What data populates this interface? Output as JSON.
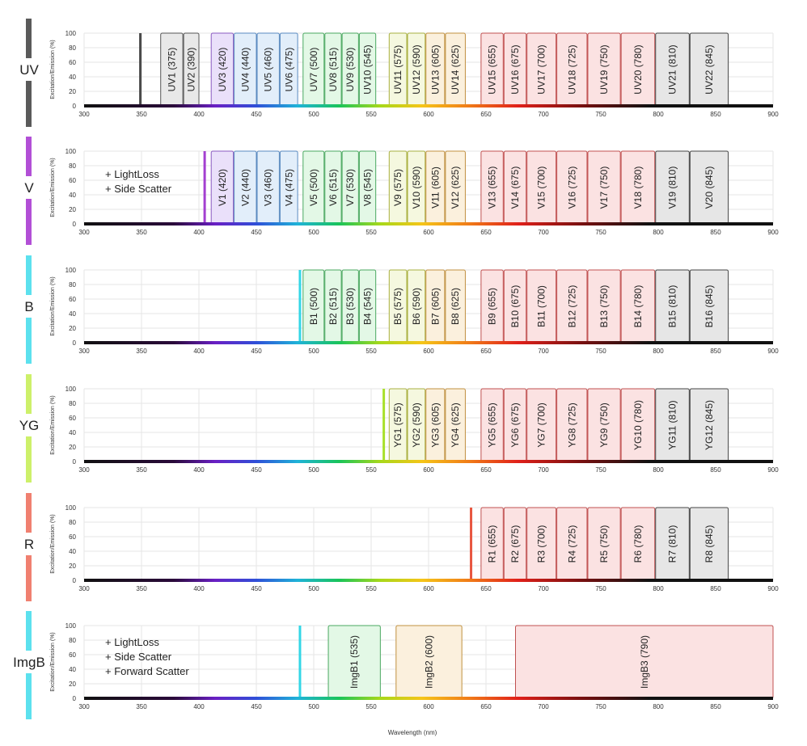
{
  "chart_data": {
    "type": "spectral-filter-layout",
    "xlabel": "Wavelength (nm)",
    "ylabel": "Excitation/Emission (%)",
    "xlim": [
      300,
      900
    ],
    "ylim": [
      0,
      100
    ],
    "x_ticks": [
      300,
      350,
      400,
      450,
      500,
      550,
      600,
      650,
      700,
      750,
      800,
      850,
      900
    ],
    "y_ticks": [
      0,
      20,
      40,
      60,
      80,
      100
    ],
    "grid": true,
    "panels": [
      {
        "laser": "UV",
        "laser_color": "#5a5a5a",
        "laser_nm": 349,
        "laser_line_color": "#4a4a4a",
        "notes": [],
        "channels": [
          {
            "name": "UV1 (375)",
            "lo": 366,
            "hi": 386
          },
          {
            "name": "UV2 (390)",
            "lo": 386,
            "hi": 400
          },
          {
            "name": "UV3 (420)",
            "lo": 410,
            "hi": 430
          },
          {
            "name": "UV4 (440)",
            "lo": 430,
            "hi": 450
          },
          {
            "name": "UV5 (460)",
            "lo": 450,
            "hi": 470
          },
          {
            "name": "UV6 (475)",
            "lo": 470,
            "hi": 486
          },
          {
            "name": "UV7 (500)",
            "lo": 490,
            "hi": 509
          },
          {
            "name": "UV8 (515)",
            "lo": 509,
            "hi": 524
          },
          {
            "name": "UV9 (530)",
            "lo": 524,
            "hi": 539
          },
          {
            "name": "UV10 (545)",
            "lo": 539,
            "hi": 554
          },
          {
            "name": "UV11 (575)",
            "lo": 565,
            "hi": 581
          },
          {
            "name": "UV12 (590)",
            "lo": 581,
            "hi": 597
          },
          {
            "name": "UV13 (605)",
            "lo": 597,
            "hi": 614
          },
          {
            "name": "UV14 (625)",
            "lo": 614,
            "hi": 632
          },
          {
            "name": "UV15 (655)",
            "lo": 645,
            "hi": 665
          },
          {
            "name": "UV16 (675)",
            "lo": 665,
            "hi": 685
          },
          {
            "name": "UV17 (700)",
            "lo": 685,
            "hi": 711
          },
          {
            "name": "UV18 (725)",
            "lo": 711,
            "hi": 738
          },
          {
            "name": "UV19 (750)",
            "lo": 738,
            "hi": 767
          },
          {
            "name": "UV20 (780)",
            "lo": 767,
            "hi": 797
          },
          {
            "name": "UV21 (810)",
            "lo": 797,
            "hi": 827
          },
          {
            "name": "UV22 (845)",
            "lo": 827,
            "hi": 861
          }
        ]
      },
      {
        "laser": "V",
        "laser_color": "#b24fd6",
        "laser_nm": 405,
        "laser_line_color": "#a33fd0",
        "notes": [
          "+ LightLoss",
          "+ Side Scatter"
        ],
        "channels": [
          {
            "name": "V1 (420)",
            "lo": 410,
            "hi": 430
          },
          {
            "name": "V2 (440)",
            "lo": 430,
            "hi": 450
          },
          {
            "name": "V3 (460)",
            "lo": 450,
            "hi": 470
          },
          {
            "name": "V4 (475)",
            "lo": 470,
            "hi": 486
          },
          {
            "name": "V5 (500)",
            "lo": 490,
            "hi": 509
          },
          {
            "name": "V6 (515)",
            "lo": 509,
            "hi": 524
          },
          {
            "name": "V7 (530)",
            "lo": 524,
            "hi": 539
          },
          {
            "name": "V8 (545)",
            "lo": 539,
            "hi": 554
          },
          {
            "name": "V9 (575)",
            "lo": 565,
            "hi": 581
          },
          {
            "name": "V10 (590)",
            "lo": 581,
            "hi": 597
          },
          {
            "name": "V11 (605)",
            "lo": 597,
            "hi": 614
          },
          {
            "name": "V12 (625)",
            "lo": 614,
            "hi": 632
          },
          {
            "name": "V13 (655)",
            "lo": 645,
            "hi": 665
          },
          {
            "name": "V14 (675)",
            "lo": 665,
            "hi": 685
          },
          {
            "name": "V15 (700)",
            "lo": 685,
            "hi": 711
          },
          {
            "name": "V16 (725)",
            "lo": 711,
            "hi": 738
          },
          {
            "name": "V17 (750)",
            "lo": 738,
            "hi": 767
          },
          {
            "name": "V18 (780)",
            "lo": 767,
            "hi": 797
          },
          {
            "name": "V19 (810)",
            "lo": 797,
            "hi": 827
          },
          {
            "name": "V20 (845)",
            "lo": 827,
            "hi": 861
          }
        ]
      },
      {
        "laser": "B",
        "laser_color": "#5ce1ee",
        "laser_nm": 488,
        "laser_line_color": "#33d6e6",
        "notes": [],
        "channels": [
          {
            "name": "B1 (500)",
            "lo": 490,
            "hi": 509
          },
          {
            "name": "B2 (515)",
            "lo": 509,
            "hi": 524
          },
          {
            "name": "B3 (530)",
            "lo": 524,
            "hi": 539
          },
          {
            "name": "B4 (545)",
            "lo": 539,
            "hi": 554
          },
          {
            "name": "B5 (575)",
            "lo": 565,
            "hi": 581
          },
          {
            "name": "B6 (590)",
            "lo": 581,
            "hi": 597
          },
          {
            "name": "B7 (605)",
            "lo": 597,
            "hi": 614
          },
          {
            "name": "B8 (625)",
            "lo": 614,
            "hi": 632
          },
          {
            "name": "B9 (655)",
            "lo": 645,
            "hi": 665
          },
          {
            "name": "B10 (675)",
            "lo": 665,
            "hi": 685
          },
          {
            "name": "B11 (700)",
            "lo": 685,
            "hi": 711
          },
          {
            "name": "B12 (725)",
            "lo": 711,
            "hi": 738
          },
          {
            "name": "B13 (750)",
            "lo": 738,
            "hi": 767
          },
          {
            "name": "B14 (780)",
            "lo": 767,
            "hi": 797
          },
          {
            "name": "B15 (810)",
            "lo": 797,
            "hi": 827
          },
          {
            "name": "B16 (845)",
            "lo": 827,
            "hi": 861
          }
        ]
      },
      {
        "laser": "YG",
        "laser_color": "#cdf06a",
        "laser_nm": 561,
        "laser_line_color": "#a8e02a",
        "notes": [],
        "channels": [
          {
            "name": "YG1 (575)",
            "lo": 565,
            "hi": 581
          },
          {
            "name": "YG2 (590)",
            "lo": 581,
            "hi": 597
          },
          {
            "name": "YG3 (605)",
            "lo": 597,
            "hi": 614
          },
          {
            "name": "YG4 (625)",
            "lo": 614,
            "hi": 632
          },
          {
            "name": "YG5 (655)",
            "lo": 645,
            "hi": 665
          },
          {
            "name": "YG6 (675)",
            "lo": 665,
            "hi": 685
          },
          {
            "name": "YG7 (700)",
            "lo": 685,
            "hi": 711
          },
          {
            "name": "YG8 (725)",
            "lo": 711,
            "hi": 738
          },
          {
            "name": "YG9 (750)",
            "lo": 738,
            "hi": 767
          },
          {
            "name": "YG10 (780)",
            "lo": 767,
            "hi": 797
          },
          {
            "name": "YG11 (810)",
            "lo": 797,
            "hi": 827
          },
          {
            "name": "YG12 (845)",
            "lo": 827,
            "hi": 861
          }
        ]
      },
      {
        "laser": "R",
        "laser_color": "#f08070",
        "laser_nm": 637,
        "laser_line_color": "#e8553f",
        "notes": [],
        "channels": [
          {
            "name": "R1 (655)",
            "lo": 645,
            "hi": 665
          },
          {
            "name": "R2 (675)",
            "lo": 665,
            "hi": 685
          },
          {
            "name": "R3 (700)",
            "lo": 685,
            "hi": 711
          },
          {
            "name": "R4 (725)",
            "lo": 711,
            "hi": 738
          },
          {
            "name": "R5 (750)",
            "lo": 738,
            "hi": 767
          },
          {
            "name": "R6 (780)",
            "lo": 767,
            "hi": 797
          },
          {
            "name": "R7 (810)",
            "lo": 797,
            "hi": 827
          },
          {
            "name": "R8 (845)",
            "lo": 827,
            "hi": 861
          }
        ]
      },
      {
        "laser": "ImgB",
        "laser_color": "#5ce1ee",
        "laser_nm": 488,
        "laser_line_color": "#33d6e6",
        "notes": [
          "+ LightLoss",
          "+ Side Scatter",
          "+ Forward Scatter"
        ],
        "channels": [
          {
            "name": "ImgB1 (535)",
            "lo": 512,
            "hi": 558
          },
          {
            "name": "ImgB2 (600)",
            "lo": 571,
            "hi": 629
          },
          {
            "name": "ImgB3 (790)",
            "lo": 675,
            "hi": 900
          }
        ]
      }
    ]
  }
}
